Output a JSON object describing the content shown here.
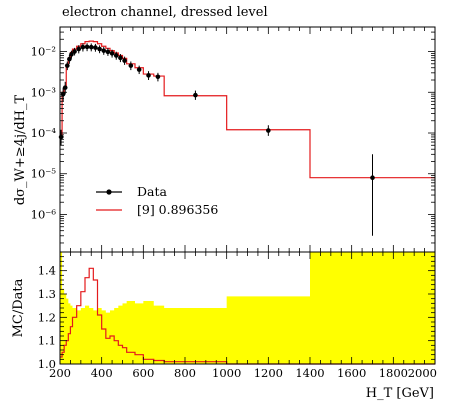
{
  "chart_data": [
    {
      "type": "histogram",
      "panel": "main",
      "title": "electron channel, dressed level",
      "ylabel": "dσ_W+≥4j/dH_T",
      "xlim": [
        200,
        2000
      ],
      "ylim": [
        1.2e-07,
        0.04
      ],
      "yscale": "log",
      "y_ticks": [
        1e-06,
        1e-05,
        0.0001,
        0.001,
        0.01
      ],
      "y_tick_labels": [
        "10⁻⁶",
        "10⁻⁵",
        "10⁻⁴",
        "10⁻³",
        "10⁻²"
      ],
      "legend": {
        "position": "lower-left",
        "entries": [
          "Data",
          "[9] 0.896356"
        ]
      },
      "series": [
        {
          "name": "Data",
          "kind": "points-with-errors",
          "color": "#000000",
          "x": [
            205,
            215,
            225,
            235,
            245,
            255,
            270,
            290,
            310,
            330,
            350,
            370,
            390,
            410,
            430,
            450,
            470,
            490,
            510,
            540,
            580,
            625,
            670,
            850,
            1200,
            1700
          ],
          "y": [
            8e-05,
            0.0009,
            0.0013,
            0.0045,
            0.0065,
            0.0085,
            0.01,
            0.0115,
            0.0128,
            0.013,
            0.0128,
            0.0125,
            0.0115,
            0.0105,
            0.0098,
            0.009,
            0.008,
            0.007,
            0.006,
            0.0045,
            0.0036,
            0.0026,
            0.0024,
            0.00085,
            0.000115,
            8e-06
          ],
          "yerr_low": [
            3e-05,
            0.0003,
            0.0004,
            0.001,
            0.0015,
            0.0018,
            0.002,
            0.0025,
            0.0028,
            0.0028,
            0.0027,
            0.0026,
            0.0024,
            0.0022,
            0.002,
            0.0019,
            0.0017,
            0.0015,
            0.0013,
            0.001,
            0.0008,
            0.0006,
            0.00055,
            0.0002,
            3e-05,
            7.7e-06
          ],
          "yerr_high": [
            4e-05,
            0.0004,
            0.0005,
            0.0012,
            0.0018,
            0.002,
            0.0023,
            0.0028,
            0.003,
            0.003,
            0.003,
            0.0029,
            0.0027,
            0.0025,
            0.0023,
            0.0021,
            0.0019,
            0.0017,
            0.0015,
            0.0012,
            0.0009,
            0.0007,
            0.0006,
            0.00025,
            4e-05,
            2.2e-05
          ]
        },
        {
          "name": "[9] 0.896356",
          "kind": "step",
          "color": "#e41a1c",
          "edges": [
            200,
            210,
            220,
            230,
            240,
            250,
            260,
            280,
            300,
            320,
            340,
            360,
            380,
            400,
            420,
            440,
            460,
            480,
            500,
            520,
            560,
            600,
            650,
            700,
            1000,
            1400,
            2000
          ],
          "values": [
            9e-05,
            0.001,
            0.0014,
            0.0048,
            0.007,
            0.0095,
            0.0115,
            0.0135,
            0.0155,
            0.0175,
            0.018,
            0.0175,
            0.0155,
            0.0135,
            0.012,
            0.0105,
            0.0092,
            0.008,
            0.0068,
            0.005,
            0.004,
            0.0028,
            0.0025,
            0.00082,
            0.00012,
            8e-06
          ]
        }
      ]
    },
    {
      "type": "histogram",
      "panel": "ratio",
      "xlabel": "H_T [GeV]",
      "ylabel": "MC/Data",
      "xlim": [
        200,
        2000
      ],
      "ylim": [
        1.0,
        1.48
      ],
      "x_ticks": [
        200,
        400,
        600,
        800,
        1000,
        1200,
        1400,
        1600,
        1800,
        2000
      ],
      "y_ticks": [
        1.0,
        1.1,
        1.2,
        1.3,
        1.4
      ],
      "series": [
        {
          "name": "uncertainty band",
          "kind": "band",
          "color": "#ffff00",
          "edges": [
            200,
            210,
            220,
            230,
            240,
            250,
            260,
            280,
            300,
            320,
            340,
            360,
            380,
            400,
            420,
            440,
            460,
            480,
            500,
            520,
            560,
            600,
            650,
            700,
            1000,
            1400,
            2000
          ],
          "values": [
            1.48,
            1.32,
            1.3,
            1.28,
            1.26,
            1.25,
            1.24,
            1.23,
            1.24,
            1.25,
            1.24,
            1.23,
            1.24,
            1.23,
            1.22,
            1.23,
            1.24,
            1.25,
            1.26,
            1.27,
            1.26,
            1.27,
            1.25,
            1.24,
            1.29,
            1.48
          ]
        },
        {
          "name": "[9] 0.896356",
          "kind": "step",
          "color": "#e41a1c",
          "edges": [
            200,
            210,
            220,
            230,
            240,
            250,
            260,
            280,
            300,
            320,
            340,
            360,
            380,
            400,
            420,
            440,
            460,
            480,
            500,
            520,
            560,
            600,
            650,
            700,
            1000,
            1400,
            2000
          ],
          "values": [
            1.03,
            1.05,
            1.08,
            1.1,
            1.13,
            1.16,
            1.2,
            1.25,
            1.31,
            1.37,
            1.41,
            1.36,
            1.21,
            1.15,
            1.11,
            1.12,
            1.1,
            1.08,
            1.07,
            1.05,
            1.04,
            1.02,
            1.015,
            1.01,
            1.0,
            1.0
          ]
        }
      ]
    }
  ]
}
